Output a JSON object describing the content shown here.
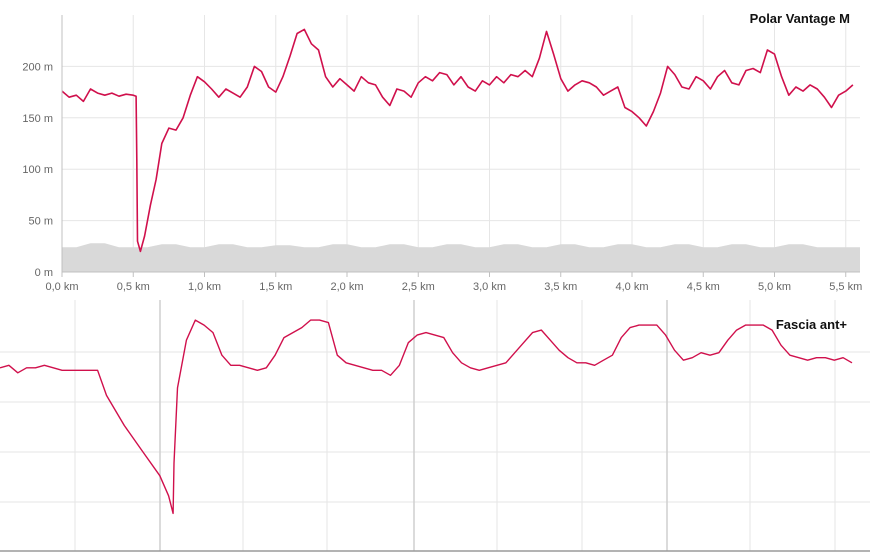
{
  "chart_data": [
    {
      "type": "area",
      "title": "Polar Vantage M",
      "xlabel": "",
      "ylabel": "",
      "xlim": [
        0,
        5.6
      ],
      "ylim": [
        0,
        250
      ],
      "x_ticks": [
        "0,0 km",
        "0,5 km",
        "1,0 km",
        "1,5 km",
        "2,0 km",
        "2,5 km",
        "3,0 km",
        "3,5 km",
        "4,0 km",
        "4,5 km",
        "5,0 km",
        "5,5 km"
      ],
      "y_ticks": [
        "0 m",
        "50 m",
        "100 m",
        "150 m",
        "200 m"
      ],
      "grid": true,
      "colors": {
        "line": "#d0104c",
        "fill": "#d9d9d9",
        "grid": "#e6e6e6",
        "axis": "#c0c0c0"
      },
      "series": [
        {
          "values_unit": "m",
          "points": [
            [
              0.0,
              176
            ],
            [
              0.05,
              170
            ],
            [
              0.1,
              172
            ],
            [
              0.15,
              166
            ],
            [
              0.2,
              178
            ],
            [
              0.25,
              174
            ],
            [
              0.3,
              172
            ],
            [
              0.35,
              174
            ],
            [
              0.4,
              171
            ],
            [
              0.45,
              173
            ],
            [
              0.5,
              172
            ],
            [
              0.52,
              171
            ],
            [
              0.525,
              110
            ],
            [
              0.53,
              30
            ],
            [
              0.55,
              20
            ],
            [
              0.58,
              35
            ],
            [
              0.62,
              65
            ],
            [
              0.66,
              90
            ],
            [
              0.7,
              125
            ],
            [
              0.75,
              140
            ],
            [
              0.8,
              138
            ],
            [
              0.85,
              150
            ],
            [
              0.9,
              172
            ],
            [
              0.95,
              190
            ],
            [
              1.0,
              185
            ],
            [
              1.05,
              178
            ],
            [
              1.1,
              170
            ],
            [
              1.15,
              178
            ],
            [
              1.2,
              174
            ],
            [
              1.25,
              170
            ],
            [
              1.3,
              180
            ],
            [
              1.35,
              200
            ],
            [
              1.4,
              195
            ],
            [
              1.45,
              180
            ],
            [
              1.5,
              175
            ],
            [
              1.55,
              190
            ],
            [
              1.6,
              210
            ],
            [
              1.65,
              232
            ],
            [
              1.7,
              236
            ],
            [
              1.75,
              222
            ],
            [
              1.8,
              216
            ],
            [
              1.85,
              190
            ],
            [
              1.9,
              180
            ],
            [
              1.95,
              188
            ],
            [
              2.0,
              182
            ],
            [
              2.05,
              176
            ],
            [
              2.1,
              190
            ],
            [
              2.15,
              184
            ],
            [
              2.2,
              182
            ],
            [
              2.25,
              170
            ],
            [
              2.3,
              162
            ],
            [
              2.35,
              178
            ],
            [
              2.4,
              176
            ],
            [
              2.45,
              170
            ],
            [
              2.5,
              184
            ],
            [
              2.55,
              190
            ],
            [
              2.6,
              186
            ],
            [
              2.65,
              194
            ],
            [
              2.7,
              192
            ],
            [
              2.75,
              182
            ],
            [
              2.8,
              190
            ],
            [
              2.85,
              180
            ],
            [
              2.9,
              176
            ],
            [
              2.95,
              186
            ],
            [
              3.0,
              182
            ],
            [
              3.05,
              190
            ],
            [
              3.1,
              184
            ],
            [
              3.15,
              192
            ],
            [
              3.2,
              190
            ],
            [
              3.25,
              196
            ],
            [
              3.3,
              190
            ],
            [
              3.35,
              208
            ],
            [
              3.4,
              234
            ],
            [
              3.45,
              212
            ],
            [
              3.5,
              188
            ],
            [
              3.55,
              176
            ],
            [
              3.6,
              182
            ],
            [
              3.65,
              186
            ],
            [
              3.7,
              184
            ],
            [
              3.75,
              180
            ],
            [
              3.8,
              172
            ],
            [
              3.85,
              176
            ],
            [
              3.9,
              180
            ],
            [
              3.95,
              160
            ],
            [
              4.0,
              156
            ],
            [
              4.05,
              150
            ],
            [
              4.1,
              142
            ],
            [
              4.15,
              156
            ],
            [
              4.2,
              174
            ],
            [
              4.25,
              200
            ],
            [
              4.3,
              192
            ],
            [
              4.35,
              180
            ],
            [
              4.4,
              178
            ],
            [
              4.45,
              190
            ],
            [
              4.5,
              186
            ],
            [
              4.55,
              178
            ],
            [
              4.6,
              190
            ],
            [
              4.65,
              196
            ],
            [
              4.7,
              184
            ],
            [
              4.75,
              182
            ],
            [
              4.8,
              196
            ],
            [
              4.85,
              198
            ],
            [
              4.9,
              194
            ],
            [
              4.95,
              216
            ],
            [
              5.0,
              212
            ],
            [
              5.05,
              190
            ],
            [
              5.1,
              172
            ],
            [
              5.15,
              180
            ],
            [
              5.2,
              176
            ],
            [
              5.25,
              182
            ],
            [
              5.3,
              178
            ],
            [
              5.35,
              170
            ],
            [
              5.4,
              160
            ],
            [
              5.45,
              172
            ],
            [
              5.5,
              176
            ],
            [
              5.55,
              182
            ]
          ]
        },
        {
          "type": "area",
          "name": "",
          "values_unit": "m",
          "points": [
            [
              0.0,
              24
            ],
            [
              0.1,
              24
            ],
            [
              0.2,
              28
            ],
            [
              0.3,
              28
            ],
            [
              0.4,
              24
            ],
            [
              0.5,
              24
            ],
            [
              0.6,
              24
            ],
            [
              0.7,
              27
            ],
            [
              0.8,
              27
            ],
            [
              0.9,
              24
            ],
            [
              1.0,
              24
            ],
            [
              1.1,
              27
            ],
            [
              1.2,
              27
            ],
            [
              1.3,
              24
            ],
            [
              1.4,
              24
            ],
            [
              1.5,
              26
            ],
            [
              1.6,
              26
            ],
            [
              1.7,
              24
            ],
            [
              1.8,
              24
            ],
            [
              1.9,
              27
            ],
            [
              2.0,
              27
            ],
            [
              2.1,
              24
            ],
            [
              2.2,
              24
            ],
            [
              2.3,
              27
            ],
            [
              2.4,
              27
            ],
            [
              2.5,
              24
            ],
            [
              2.6,
              24
            ],
            [
              2.7,
              27
            ],
            [
              2.8,
              27
            ],
            [
              2.9,
              24
            ],
            [
              3.0,
              24
            ],
            [
              3.1,
              27
            ],
            [
              3.2,
              27
            ],
            [
              3.3,
              24
            ],
            [
              3.4,
              24
            ],
            [
              3.5,
              27
            ],
            [
              3.6,
              27
            ],
            [
              3.7,
              24
            ],
            [
              3.8,
              24
            ],
            [
              3.9,
              27
            ],
            [
              4.0,
              27
            ],
            [
              4.1,
              24
            ],
            [
              4.2,
              24
            ],
            [
              4.3,
              27
            ],
            [
              4.4,
              27
            ],
            [
              4.5,
              24
            ],
            [
              4.6,
              24
            ],
            [
              4.7,
              27
            ],
            [
              4.8,
              27
            ],
            [
              4.9,
              24
            ],
            [
              5.0,
              24
            ],
            [
              5.1,
              27
            ],
            [
              5.2,
              27
            ],
            [
              5.3,
              24
            ],
            [
              5.4,
              24
            ],
            [
              5.5,
              24
            ],
            [
              5.6,
              24
            ]
          ]
        }
      ]
    },
    {
      "type": "line",
      "title": "Fascia ant+",
      "xlabel": "",
      "ylabel": "",
      "grid": true,
      "colors": {
        "line": "#d0104c",
        "grid": "#e6e6e6",
        "axis": "#c0c0c0"
      },
      "x_range": [
        0,
        100
      ],
      "y_range": [
        0,
        100
      ],
      "series": [
        {
          "points": [
            [
              0,
              73
            ],
            [
              1,
              74
            ],
            [
              2,
              71
            ],
            [
              3,
              73
            ],
            [
              4,
              73
            ],
            [
              5,
              74
            ],
            [
              6,
              73
            ],
            [
              7,
              72
            ],
            [
              8,
              72
            ],
            [
              9,
              72
            ],
            [
              10,
              72
            ],
            [
              11,
              72
            ],
            [
              12,
              62
            ],
            [
              14,
              50
            ],
            [
              16,
              40
            ],
            [
              18,
              30
            ],
            [
              19,
              22
            ],
            [
              19.5,
              15
            ],
            [
              19.6,
              35
            ],
            [
              20,
              65
            ],
            [
              21,
              84
            ],
            [
              22,
              92
            ],
            [
              23,
              90
            ],
            [
              24,
              87
            ],
            [
              25,
              78
            ],
            [
              26,
              74
            ],
            [
              27,
              74
            ],
            [
              28,
              73
            ],
            [
              29,
              72
            ],
            [
              30,
              73
            ],
            [
              31,
              78
            ],
            [
              32,
              85
            ],
            [
              34,
              89
            ],
            [
              35,
              92
            ],
            [
              36,
              92
            ],
            [
              37,
              91
            ],
            [
              38,
              78
            ],
            [
              39,
              75
            ],
            [
              40,
              74
            ],
            [
              41,
              73
            ],
            [
              42,
              72
            ],
            [
              43,
              72
            ],
            [
              44,
              70
            ],
            [
              45,
              74
            ],
            [
              46,
              83
            ],
            [
              47,
              86
            ],
            [
              48,
              87
            ],
            [
              49,
              86
            ],
            [
              50,
              85
            ],
            [
              51,
              79
            ],
            [
              52,
              75
            ],
            [
              53,
              73
            ],
            [
              54,
              72
            ],
            [
              55,
              73
            ],
            [
              56,
              74
            ],
            [
              57,
              75
            ],
            [
              58,
              79
            ],
            [
              59,
              83
            ],
            [
              60,
              87
            ],
            [
              61,
              88
            ],
            [
              62,
              84
            ],
            [
              63,
              80
            ],
            [
              64,
              77
            ],
            [
              65,
              75
            ],
            [
              66,
              75
            ],
            [
              67,
              74
            ],
            [
              68,
              76
            ],
            [
              69,
              78
            ],
            [
              70,
              85
            ],
            [
              71,
              89
            ],
            [
              72,
              90
            ],
            [
              73,
              90
            ],
            [
              74,
              90
            ],
            [
              75,
              86
            ],
            [
              76,
              80
            ],
            [
              77,
              76
            ],
            [
              78,
              77
            ],
            [
              79,
              79
            ],
            [
              80,
              78
            ],
            [
              81,
              79
            ],
            [
              82,
              84
            ],
            [
              83,
              88
            ],
            [
              84,
              90
            ],
            [
              85,
              90
            ],
            [
              86,
              90
            ],
            [
              87,
              88
            ],
            [
              88,
              82
            ],
            [
              89,
              78
            ],
            [
              90,
              77
            ],
            [
              91,
              76
            ],
            [
              92,
              77
            ],
            [
              93,
              77
            ],
            [
              94,
              76
            ],
            [
              95,
              77
            ],
            [
              96,
              75
            ]
          ]
        }
      ]
    }
  ]
}
